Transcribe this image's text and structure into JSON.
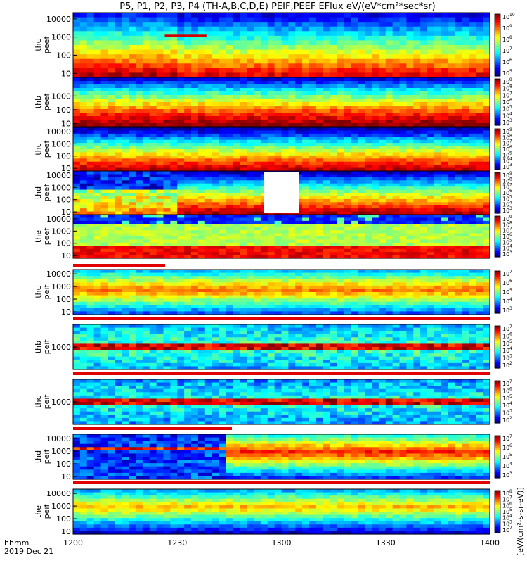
{
  "title": "P5, P1, P2, P3, P4 (TH-A,B,C,D,E) PEIF,PEEF EFlux eV/(eV*cm²*sec*sr)",
  "x_axis": {
    "ticks": [
      "1200",
      "1230",
      "1300",
      "1330",
      "1400"
    ],
    "corner_labels": [
      "hhmm",
      "2019 Dec 21"
    ]
  },
  "colorbar_unit": "[eV/(cm²-s-sr-eV)]",
  "chart_data": [
    {
      "type": "heatmap",
      "name": "thc peef",
      "ylabel": [
        "thc",
        "peef"
      ],
      "y_ticks": [
        "10",
        "100",
        "1000",
        "10000"
      ],
      "y_scale": "log",
      "cbar_exps": [
        "5",
        "6",
        "7",
        "8",
        "9",
        "10"
      ],
      "x_range": [
        "1200",
        "1400"
      ],
      "features": {
        "flag_bar": [
          0.22,
          0.32
        ]
      }
    },
    {
      "type": "heatmap",
      "name": "thb peef",
      "ylabel": [
        "thb",
        "peef"
      ],
      "y_ticks": [
        "10",
        "100",
        "1000"
      ],
      "y_scale": "log",
      "cbar_exps": [
        "3",
        "4",
        "5",
        "6",
        "7",
        "8",
        "9"
      ],
      "x_range": [
        "1200",
        "1400"
      ]
    },
    {
      "type": "heatmap",
      "name": "thc peef",
      "ylabel": [
        "thc",
        "peef"
      ],
      "y_ticks": [
        "10",
        "100",
        "1000",
        "10000"
      ],
      "y_scale": "log",
      "cbar_exps": [
        "3",
        "4",
        "5",
        "6",
        "7",
        "8",
        "9"
      ],
      "x_range": [
        "1200",
        "1400"
      ]
    },
    {
      "type": "heatmap",
      "name": "thd peef",
      "ylabel": [
        "thd",
        "peef"
      ],
      "y_ticks": [
        "10",
        "100",
        "1000",
        "10000"
      ],
      "y_scale": "log",
      "cbar_exps": [
        "3",
        "4",
        "5",
        "6",
        "7",
        "8",
        "9"
      ],
      "x_range": [
        "1200",
        "1400"
      ],
      "features": {
        "data_gap": [
          "1255",
          "1305"
        ]
      }
    },
    {
      "type": "heatmap",
      "name": "the peef",
      "ylabel": [
        "the",
        "peef"
      ],
      "y_ticks": [
        "10",
        "100",
        "1000",
        "10000"
      ],
      "y_scale": "log",
      "cbar_exps": [
        "3",
        "4",
        "5",
        "6",
        "7",
        "8",
        "9"
      ],
      "x_range": [
        "1200",
        "1400"
      ]
    },
    {
      "type": "heatmap",
      "name": "thc peif",
      "ylabel": [
        "thc",
        "peif"
      ],
      "y_ticks": [
        "10",
        "100",
        "1000",
        "10000"
      ],
      "y_scale": "log",
      "cbar_exps": [
        "3",
        "4",
        "5",
        "6",
        "7"
      ],
      "x_range": [
        "1200",
        "1400"
      ]
    },
    {
      "type": "heatmap",
      "name": "thb peif",
      "ylabel": [
        "thb",
        "peif"
      ],
      "y_ticks": [
        "1000"
      ],
      "y_scale": "log",
      "cbar_exps": [
        "2",
        "3",
        "4",
        "5",
        "6",
        "7"
      ],
      "x_range": [
        "1200",
        "1400"
      ]
    },
    {
      "type": "heatmap",
      "name": "thc peif",
      "ylabel": [
        "thc",
        "peif"
      ],
      "y_ticks": [
        "1000"
      ],
      "y_scale": "log",
      "cbar_exps": [
        "2",
        "3",
        "4",
        "5",
        "6",
        "7"
      ],
      "x_range": [
        "1200",
        "1400"
      ]
    },
    {
      "type": "heatmap",
      "name": "thd peif",
      "ylabel": [
        "thd",
        "peif"
      ],
      "y_ticks": [
        "10",
        "100",
        "1000",
        "10000"
      ],
      "y_scale": "log",
      "cbar_exps": [
        "3",
        "4",
        "5",
        "6",
        "7"
      ],
      "x_range": [
        "1200",
        "1400"
      ]
    },
    {
      "type": "heatmap",
      "name": "the peif",
      "ylabel": [
        "the",
        "peif"
      ],
      "y_ticks": [
        "10",
        "100",
        "1000",
        "10000"
      ],
      "y_scale": "log",
      "cbar_exps": [
        "2",
        "3",
        "4",
        "5",
        "6",
        "7",
        "8"
      ],
      "x_range": [
        "1200",
        "1400"
      ]
    }
  ]
}
